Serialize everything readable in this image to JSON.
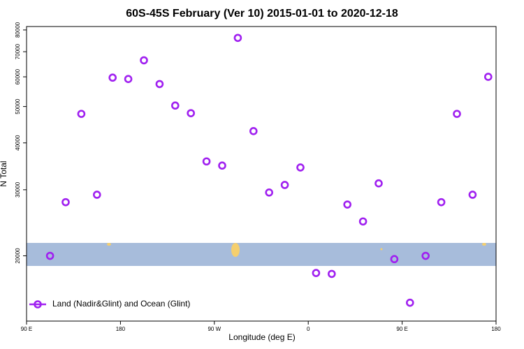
{
  "chart_data": {
    "type": "scatter",
    "title": "60S-45S February (Ver 10)   2015-01-01 to 2020-12-18",
    "xlabel": "Longitude (deg E)",
    "ylabel": "N Total",
    "series": [
      {
        "name": "Land (Nadir&Glint) and Ocean (Glint)",
        "color": "#a020f0",
        "x": [
          112.5,
          127.5,
          142.5,
          157.5,
          172.5,
          187.5,
          202.5,
          217.5,
          232.5,
          247.5,
          262.5,
          277.5,
          292.5,
          307.5,
          322.5,
          337.5,
          352.5,
          367.5,
          382.5,
          397.5,
          412.5,
          427.5,
          442.5,
          457.5,
          472.5,
          487.5,
          502.5,
          517.5,
          532.5
        ],
        "values": [
          20000,
          27800,
          47800,
          29100,
          59700,
          59200,
          66400,
          57400,
          50300,
          48000,
          35700,
          34800,
          76200,
          43000,
          29500,
          30900,
          34400,
          18000,
          17900,
          27400,
          24700,
          31200,
          19600,
          15000,
          20000,
          27800,
          47800,
          29100,
          60000
        ]
      }
    ],
    "xlim": [
      90,
      540
    ],
    "xticks": [
      {
        "value": 90,
        "label": "90 E"
      },
      {
        "value": 180,
        "label": "180"
      },
      {
        "value": 270,
        "label": "90 W"
      },
      {
        "value": 360,
        "label": "0"
      },
      {
        "value": 450,
        "label": "90 E"
      },
      {
        "value": 540,
        "label": "180"
      }
    ],
    "ylim": [
      13400,
      81700
    ],
    "yticks": [
      20000,
      30000,
      40000,
      50000,
      60000,
      70000,
      80000
    ],
    "ylog": true,
    "legend": "lower left"
  }
}
